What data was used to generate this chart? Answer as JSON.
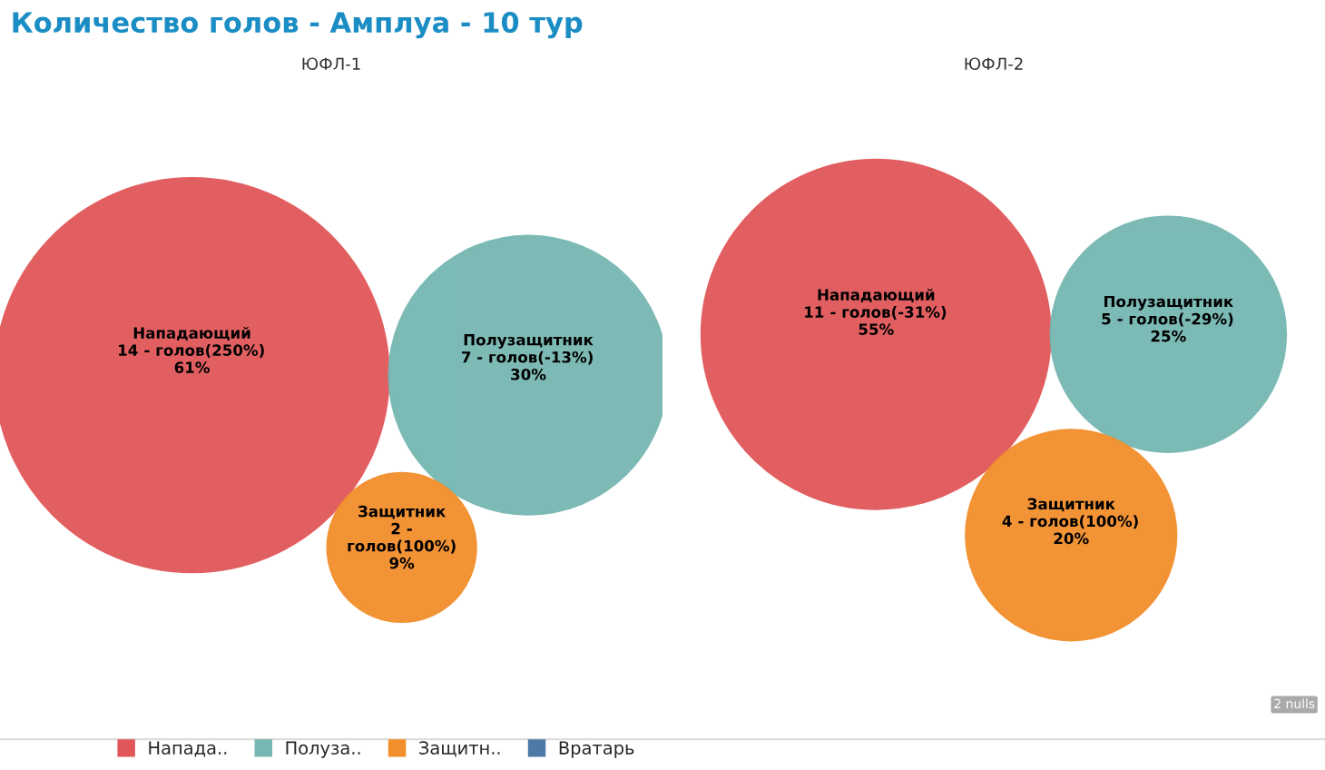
{
  "chart_data": [
    {
      "type": "other",
      "title": "Количество голов - Амплуа - 10 тур",
      "subtitle": "ЮФЛ-1",
      "legend": "bottom",
      "data_labels": true,
      "categories": [
        "Нападающий",
        "Полузащитник",
        "Защитник"
      ],
      "series": [
        {
          "name": "Напада..",
          "color": "#e15759",
          "values": [
            14,
            null,
            null
          ],
          "value_labels": [
            "14 - голов(250%)\n61%",
            null,
            null
          ]
        },
        {
          "name": "Полуза..",
          "color": "#76b7b2",
          "values": [
            null,
            7,
            null
          ],
          "value_labels": [
            null,
            "7 - голов(-13%)\n30%",
            null
          ]
        },
        {
          "name": "Защитн..",
          "color": "#f28e2b",
          "values": [
            null,
            null,
            2
          ],
          "value_labels": [
            null,
            null,
            "2 -\nголов(100%)\n9%"
          ]
        },
        {
          "name": "Вратарь",
          "color": "#4e79a7",
          "values": [
            null,
            null,
            null
          ]
        }
      ]
    },
    {
      "type": "other",
      "subtitle": "ЮФЛ-2",
      "annotations": [
        "2 nulls"
      ],
      "data_labels": true,
      "categories": [
        "Нападающий",
        "Полузащитник",
        "Защитник"
      ],
      "series": [
        {
          "color": "#e15759",
          "values": [
            11,
            null,
            null
          ],
          "value_labels": [
            "11 - голов(-31%)\n55%",
            null,
            null
          ]
        },
        {
          "color": "#76b7b2",
          "values": [
            null,
            5,
            null
          ],
          "value_labels": [
            null,
            "5 - голов(-29%)\n25%",
            null
          ]
        },
        {
          "color": "#f28e2b",
          "values": [
            null,
            null,
            4
          ],
          "value_labels": [
            null,
            null,
            "4 - голов(100%)\n20%"
          ]
        }
      ]
    }
  ]
}
